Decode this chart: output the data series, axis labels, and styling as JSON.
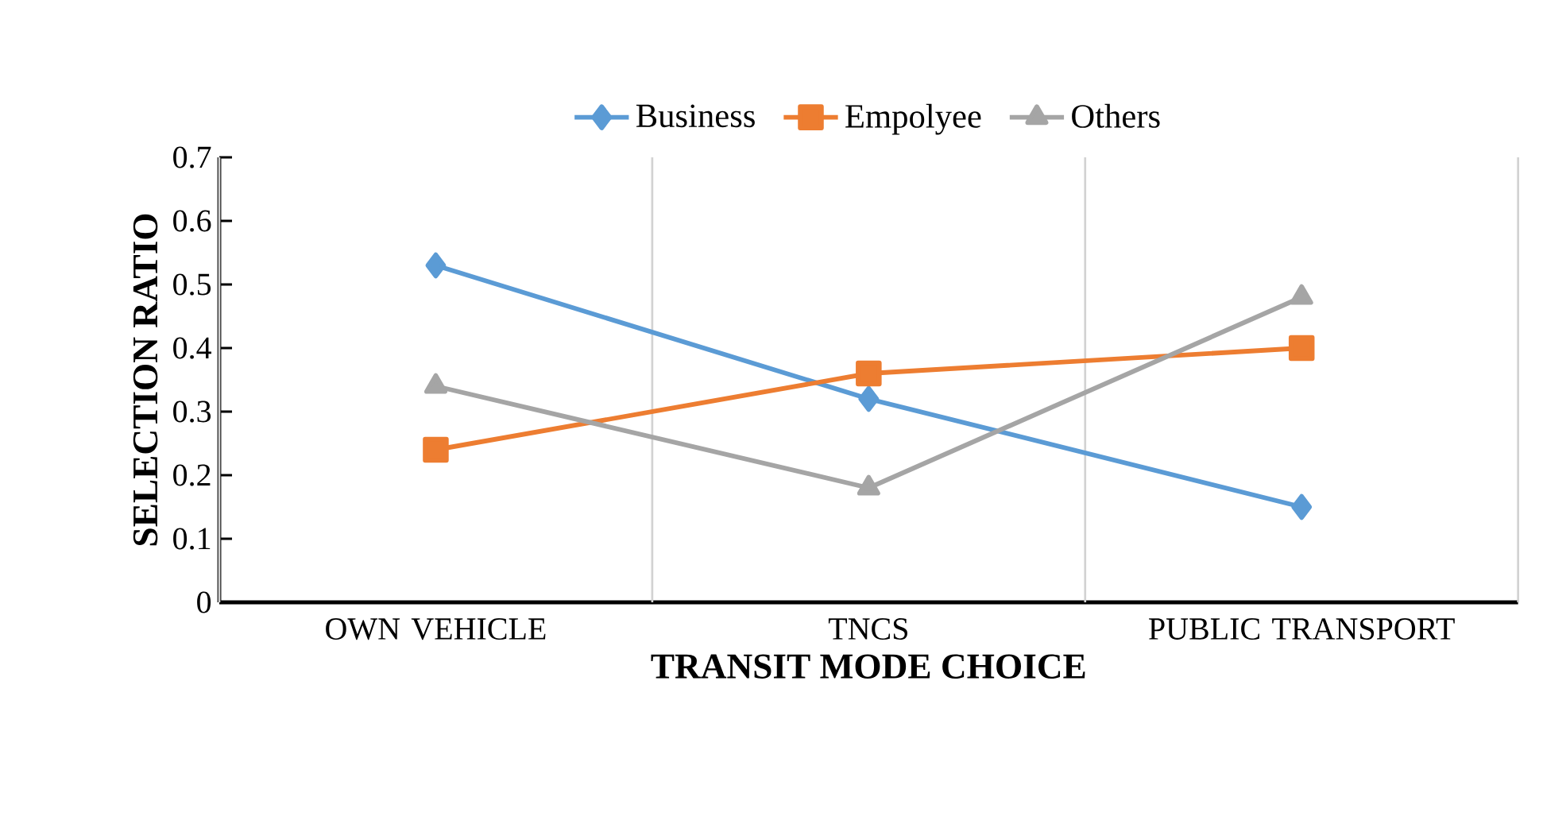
{
  "chart_data": {
    "type": "line",
    "xlabel": "TRANSIT MODE CHOICE",
    "ylabel": "SELECTION RATIO",
    "categories": [
      "OWN VEHICLE",
      "TNCS",
      "PUBLIC TRANSPORT"
    ],
    "series": [
      {
        "name": "Business",
        "color": "#5b9bd5",
        "marker": "diamond",
        "values": [
          0.53,
          0.32,
          0.15
        ]
      },
      {
        "name": "Empolyee",
        "color": "#ed7d31",
        "marker": "square",
        "values": [
          0.24,
          0.36,
          0.4
        ]
      },
      {
        "name": "Others",
        "color": "#a5a5a5",
        "marker": "triangle",
        "values": [
          0.34,
          0.18,
          0.48
        ]
      }
    ],
    "ylim": [
      0,
      0.7
    ],
    "yticks": [
      0,
      0.1,
      0.2,
      0.3,
      0.4,
      0.5,
      0.6,
      0.7
    ],
    "grid": "x",
    "legend": "top"
  }
}
